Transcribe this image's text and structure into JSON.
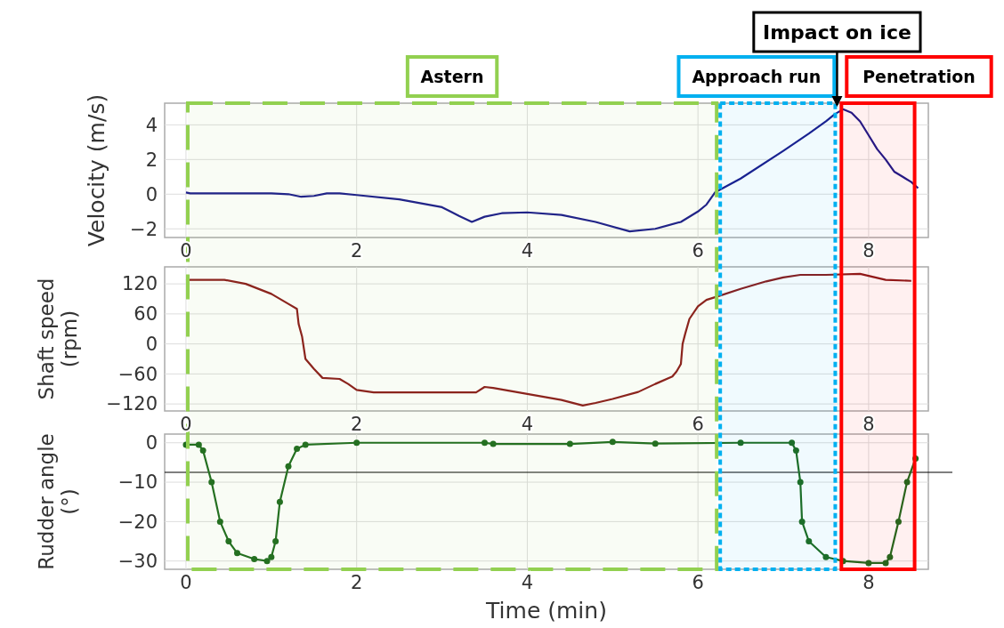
{
  "chart_data": [
    {
      "type": "line",
      "ylabel": "Velocity (m/s)",
      "xlim": [
        -0.25,
        8.7
      ],
      "xticks": [
        0,
        2,
        4,
        6,
        8
      ],
      "ylim": [
        -2.5,
        5.25
      ],
      "yticks": [
        {
          "value": -2,
          "label": "−2"
        },
        0,
        2,
        4
      ],
      "grid": true,
      "x": [
        0,
        0.05,
        1.0,
        1.2,
        1.35,
        1.5,
        1.65,
        1.8,
        2.0,
        2.5,
        3.0,
        3.2,
        3.35,
        3.5,
        3.7,
        4.0,
        4.4,
        4.8,
        5.2,
        5.5,
        5.8,
        6.0,
        6.1,
        6.2,
        6.5,
        7.0,
        7.3,
        7.5,
        7.6,
        7.7,
        7.8,
        7.9,
        8.0,
        8.1,
        8.2,
        8.3,
        8.4,
        8.5,
        8.58
      ],
      "series": [
        {
          "color": "#1a1a8c",
          "values": [
            0.1,
            0.05,
            0.05,
            0.0,
            -0.15,
            -0.1,
            0.05,
            0.05,
            -0.05,
            -0.3,
            -0.75,
            -1.25,
            -1.6,
            -1.3,
            -1.1,
            -1.05,
            -1.2,
            -1.6,
            -2.15,
            -2.0,
            -1.6,
            -1.0,
            -0.6,
            0.1,
            0.9,
            2.5,
            3.5,
            4.2,
            4.6,
            4.9,
            4.7,
            4.2,
            3.4,
            2.6,
            2.0,
            1.3,
            1.0,
            0.7,
            0.35
          ]
        }
      ],
      "bands": [
        {
          "axis": "x",
          "from": 0,
          "to": 6.24,
          "label": "Astern",
          "color": "#92d050"
        },
        {
          "axis": "x",
          "from": 6.24,
          "to": 7.63,
          "label": "Approach run",
          "color": "#00b0f0"
        },
        {
          "axis": "x",
          "from": 7.66,
          "to": 8.56,
          "label": "Penetration",
          "color": "#ff0000"
        }
      ],
      "ref_lines": [
        {
          "axis": "x",
          "value": 7.63,
          "label": "Impact on ice",
          "color": "#000000"
        }
      ]
    },
    {
      "type": "line",
      "ylabel": "Shaft speed (rpm)",
      "xlim": [
        -0.25,
        8.7
      ],
      "xticks": [
        0,
        2,
        4,
        6,
        8
      ],
      "ylim": [
        -134,
        154
      ],
      "yticks": [
        {
          "value": -120,
          "label": "−120"
        },
        {
          "value": -60,
          "label": "−60"
        },
        0,
        60,
        120
      ],
      "grid": true,
      "x": [
        0,
        0.45,
        0.7,
        1.0,
        1.2,
        1.3,
        1.32,
        1.36,
        1.4,
        1.5,
        1.6,
        1.8,
        1.9,
        2.0,
        2.2,
        3.4,
        3.5,
        3.6,
        4.0,
        4.4,
        4.65,
        4.8,
        5.0,
        5.3,
        5.5,
        5.7,
        5.75,
        5.8,
        5.82,
        5.85,
        5.9,
        6.0,
        6.1,
        6.25,
        6.5,
        6.8,
        7.0,
        7.2,
        7.5,
        7.9,
        8.0,
        8.2,
        8.5
      ],
      "series": [
        {
          "color": "#8b1a1a",
          "values": [
            128,
            128,
            120,
            100,
            80,
            70,
            40,
            15,
            -30,
            -50,
            -68,
            -70,
            -80,
            -92,
            -97,
            -97,
            -86,
            -88,
            -100,
            -112,
            -123,
            -118,
            -110,
            -96,
            -80,
            -65,
            -55,
            -40,
            0,
            20,
            50,
            75,
            88,
            96,
            110,
            125,
            133,
            138,
            138,
            140,
            136,
            128,
            126
          ]
        }
      ]
    },
    {
      "type": "line",
      "ylabel": "Rudder angle (°)",
      "xlabel": "Time (min)",
      "xlim": [
        -0.25,
        8.7
      ],
      "xticks": [
        0,
        2,
        4,
        6,
        8
      ],
      "ylim": [
        -32.1,
        2.2
      ],
      "yticks": [
        {
          "value": -30,
          "label": "−30"
        },
        {
          "value": -20,
          "label": "−20"
        },
        {
          "value": -10,
          "label": "−10"
        },
        0
      ],
      "grid": true,
      "marker": "circle",
      "x": [
        0,
        0.15,
        0.2,
        0.3,
        0.4,
        0.5,
        0.6,
        0.8,
        0.95,
        1.0,
        1.05,
        1.1,
        1.2,
        1.3,
        1.4,
        2.0,
        3.5,
        3.6,
        4.5,
        5.0,
        5.5,
        6.5,
        7.1,
        7.15,
        7.2,
        7.22,
        7.3,
        7.5,
        7.7,
        8.0,
        8.2,
        8.25,
        8.35,
        8.45,
        8.55
      ],
      "series": [
        {
          "color": "#1e6b1e",
          "values": [
            -0.5,
            -0.5,
            -2,
            -10,
            -20,
            -25,
            -28,
            -29.5,
            -30,
            -29,
            -25,
            -15,
            -6,
            -1.5,
            -0.5,
            0,
            0,
            -0.3,
            -0.3,
            0.2,
            -0.2,
            0,
            0,
            -2,
            -10,
            -20,
            -25,
            -29,
            -30,
            -30.5,
            -30.5,
            -29,
            -20,
            -10,
            -4
          ]
        }
      ],
      "ref_lines": [
        {
          "axis": "y",
          "value": -7.5,
          "color": "#000000"
        }
      ]
    }
  ]
}
